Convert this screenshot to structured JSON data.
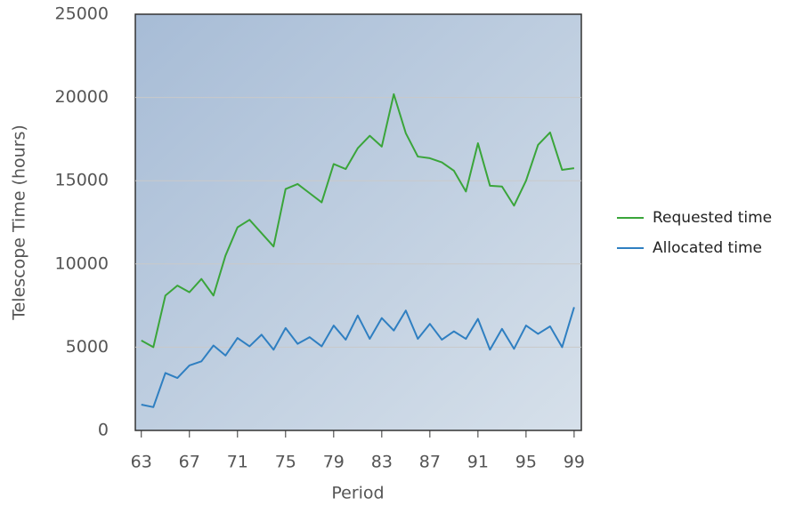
{
  "chart_data": {
    "type": "line",
    "x_label": "Period",
    "y_label": "Telescope Time (hours)",
    "x": [
      63,
      64,
      65,
      66,
      67,
      68,
      69,
      70,
      71,
      72,
      73,
      74,
      75,
      76,
      77,
      78,
      79,
      80,
      81,
      82,
      83,
      84,
      85,
      86,
      87,
      88,
      89,
      90,
      91,
      92,
      93,
      94,
      95,
      96,
      97,
      98,
      99
    ],
    "series": [
      {
        "name": "Requested time",
        "color": "#3aa53a",
        "values": [
          5400,
          5000,
          8100,
          8700,
          8300,
          9100,
          8100,
          10500,
          12200,
          12650,
          11850,
          11050,
          14500,
          14800,
          14250,
          13700,
          16000,
          15700,
          16950,
          17700,
          17050,
          20200,
          17850,
          16450,
          16350,
          16100,
          15600,
          14350,
          17250,
          14700,
          14650,
          13500,
          15000,
          17150,
          17900,
          15650,
          15750
        ]
      },
      {
        "name": "Allocated time",
        "color": "#2f7fc1",
        "values": [
          1550,
          1400,
          3450,
          3150,
          3900,
          4150,
          5100,
          4500,
          5550,
          5050,
          5750,
          4850,
          6150,
          5200,
          5600,
          5050,
          6300,
          5450,
          6900,
          5500,
          6750,
          6000,
          7200,
          5500,
          6400,
          5450,
          5950,
          5500,
          6700,
          4850,
          6100,
          4900,
          6300,
          5800,
          6250,
          5000,
          7400
        ]
      }
    ],
    "xlim": [
      62.5,
      99.6
    ],
    "xticks": [
      63,
      67,
      71,
      75,
      79,
      83,
      87,
      91,
      95,
      99
    ],
    "ylim": [
      0,
      25000
    ],
    "yticks": [
      0,
      5000,
      10000,
      15000,
      20000,
      25000
    ],
    "grid": true,
    "legend": "right"
  }
}
